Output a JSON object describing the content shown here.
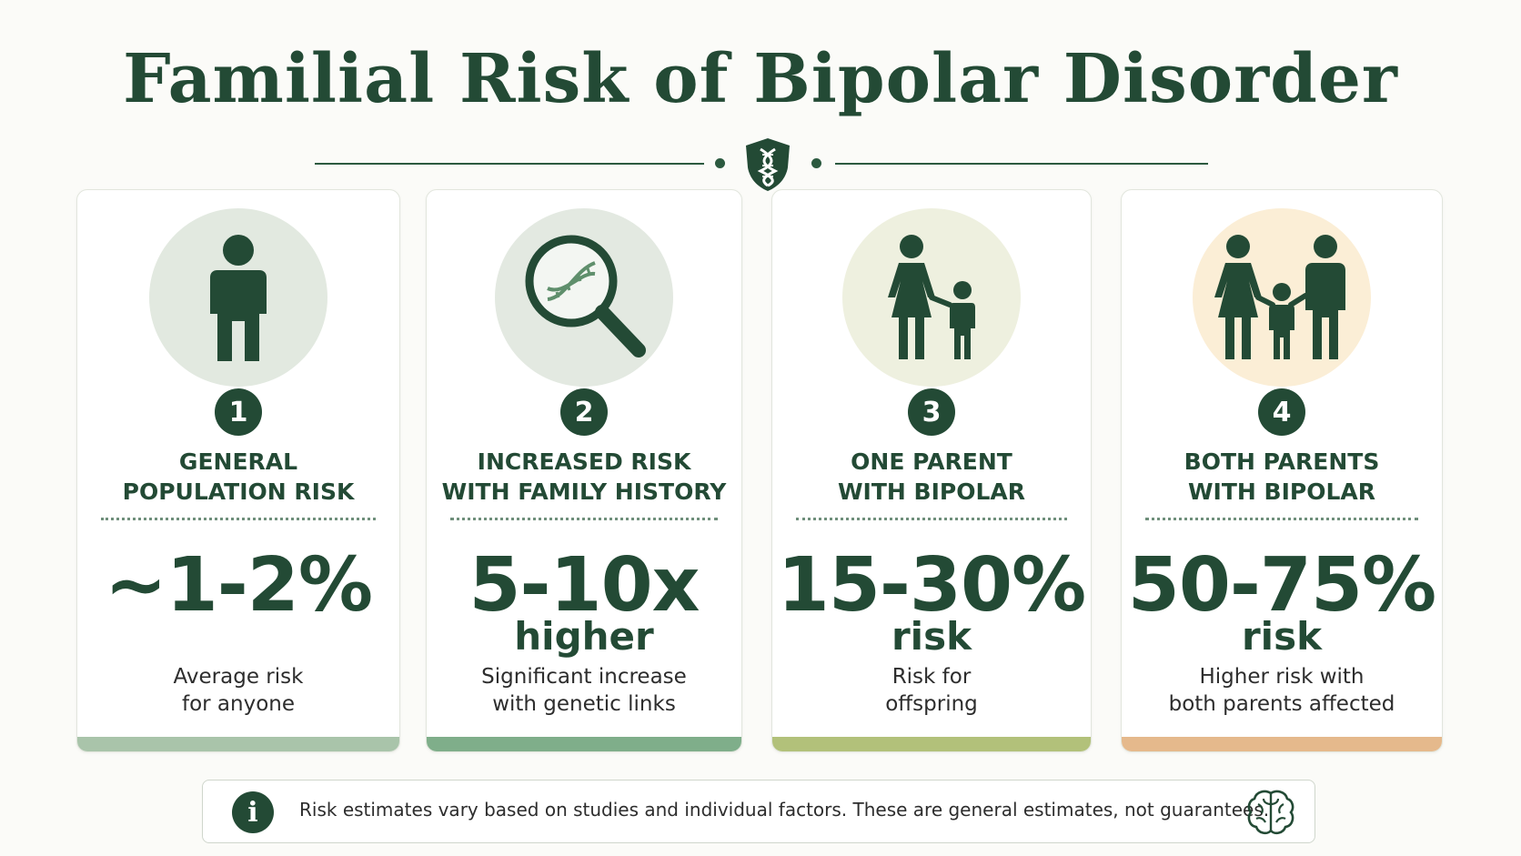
{
  "title": "Familial Risk of Bipolar Disorder",
  "header_icon": "dna-shield-icon",
  "cards": [
    {
      "number": "1",
      "heading": [
        "GENERAL",
        "POPULATION RISK"
      ],
      "value": "~1-2%",
      "unit": "",
      "description": [
        "Average risk",
        "for anyone"
      ],
      "icon": "person-icon",
      "circle_color": "#e2e9e0",
      "bar_color": "#a9c4aa"
    },
    {
      "number": "2",
      "heading": [
        "INCREASED RISK",
        "WITH FAMILY HISTORY"
      ],
      "value": "5-10x",
      "unit": "higher",
      "description": [
        "Significant increase",
        "with genetic links"
      ],
      "icon": "magnifier-dna-icon",
      "circle_color": "#e3e9e1",
      "bar_color": "#7fae8a"
    },
    {
      "number": "3",
      "heading": [
        "ONE PARENT",
        "WITH BIPOLAR"
      ],
      "value": "15-30%",
      "unit": "risk",
      "description": [
        "Risk for",
        "offspring"
      ],
      "icon": "parent-child-icon",
      "circle_color": "#eef0df",
      "bar_color": "#b2c17a"
    },
    {
      "number": "4",
      "heading": [
        "BOTH PARENTS",
        "WITH BIPOLAR"
      ],
      "value": "50-75%",
      "unit": "risk",
      "description": [
        "Higher risk with",
        "both parents affected"
      ],
      "icon": "family-icon",
      "circle_color": "#fbeed6",
      "bar_color": "#e5b98c"
    }
  ],
  "note": {
    "text": "Risk estimates vary based on studies and individual factors. These are general estimates, not guarantees.",
    "icon": "info-icon",
    "trailing_icon": "brain-icon"
  }
}
